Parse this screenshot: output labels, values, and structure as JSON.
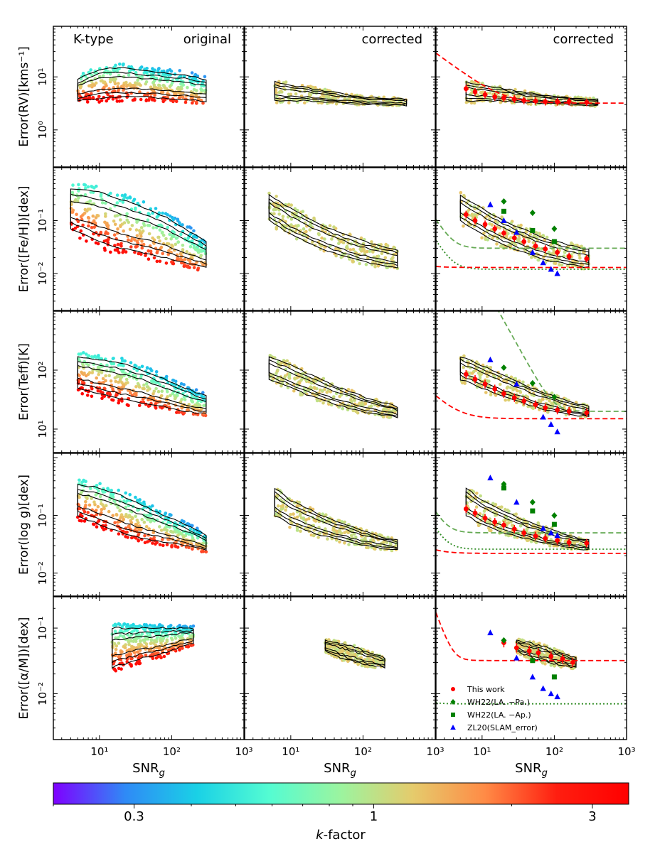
{
  "figure": {
    "row_ylabels": [
      "Error(RV)[kms⁻¹]",
      "Error([Fe/H])[dex]",
      "Error(Teff)[K]",
      "Error(log g)[dex]",
      "Error([α/M])[dex]"
    ],
    "col_titles": [
      "original",
      "corrected",
      "corrected"
    ],
    "type_label": "K-type",
    "xlabel": "SNR",
    "xlabel_sub": "g",
    "colorbar": {
      "label": "k-factor",
      "label_italic": "k",
      "label_rest": "-factor",
      "range": [
        0.2,
        3.6
      ],
      "ticks": [
        0.3,
        1,
        3
      ],
      "tick_labels": [
        "0.3",
        "1",
        "3"
      ],
      "colors": [
        "#7f00ff",
        "#2f8af6",
        "#1ad1e6",
        "#54fcd2",
        "#9cf49f",
        "#e5cb6c",
        "#ff8b46",
        "#ff1e10",
        "#ff0000"
      ]
    },
    "legend": {
      "entries": [
        {
          "label": "This work",
          "marker": "circle",
          "color": "#ff0000"
        },
        {
          "label": "WH22(LA. −Pa.)",
          "marker": "diamond",
          "color": "#008000"
        },
        {
          "label": "WH22(LA. −Ap.)",
          "marker": "square",
          "color": "#008000"
        },
        {
          "label": "ZL20(SLAM_error)",
          "marker": "triangle",
          "color": "#0000ff"
        }
      ]
    }
  },
  "chart_data": [
    {
      "type": "scatter",
      "row": 0,
      "param": "RV",
      "ylabel": "Error(RV)[kms⁻¹]",
      "xlim": [
        2.3,
        1000
      ],
      "ylim": [
        0.2,
        90
      ],
      "yticks": [
        1,
        10
      ],
      "ytick_labels": [
        "10⁰",
        "10¹"
      ],
      "xticks": [
        10,
        100,
        1000
      ],
      "xtick_labels": [
        "10¹",
        "10²",
        "10³"
      ],
      "band_original": [
        [
          5,
          3.5,
          9
        ],
        [
          10,
          4,
          14
        ],
        [
          20,
          4.2,
          15
        ],
        [
          40,
          4.2,
          13
        ],
        [
          80,
          4,
          12
        ],
        [
          150,
          3.8,
          11
        ],
        [
          300,
          3.5,
          9
        ]
      ],
      "band_corrected": [
        [
          6,
          3.5,
          8
        ],
        [
          10,
          3.6,
          7
        ],
        [
          20,
          3.5,
          6
        ],
        [
          50,
          3.2,
          4.8
        ],
        [
          100,
          3.1,
          4.2
        ],
        [
          200,
          3,
          4
        ],
        [
          400,
          2.9,
          3.8
        ]
      ],
      "binned_x": [
        6,
        8,
        11,
        15,
        20,
        28,
        38,
        55,
        75,
        110,
        160,
        280
      ],
      "binned_y": [
        6,
        5.2,
        4.6,
        4.2,
        4.0,
        3.8,
        3.6,
        3.5,
        3.4,
        3.4,
        3.4,
        3.3
      ],
      "fit": {
        "a": 3.2,
        "b": 20,
        "g": 1
      },
      "curves": []
    },
    {
      "type": "scatter",
      "row": 1,
      "param": "[Fe/H]",
      "ylabel": "Error([Fe/H])[dex]",
      "xlim": [
        2.3,
        1000
      ],
      "ylim": [
        0.002,
        1
      ],
      "yticks": [
        0.01,
        0.1
      ],
      "ytick_labels": [
        "10⁻²",
        "10⁻¹"
      ],
      "xticks": [
        10,
        100,
        1000
      ],
      "xtick_labels": [
        "10¹",
        "10²",
        "10³"
      ],
      "band_original": [
        [
          4,
          0.07,
          0.4
        ],
        [
          10,
          0.04,
          0.35
        ],
        [
          20,
          0.03,
          0.25
        ],
        [
          40,
          0.025,
          0.18
        ],
        [
          80,
          0.02,
          0.12
        ],
        [
          150,
          0.016,
          0.07
        ],
        [
          300,
          0.013,
          0.04
        ]
      ],
      "band_corrected": [
        [
          5,
          0.1,
          0.3
        ],
        [
          10,
          0.055,
          0.17
        ],
        [
          20,
          0.035,
          0.1
        ],
        [
          40,
          0.024,
          0.065
        ],
        [
          80,
          0.018,
          0.045
        ],
        [
          150,
          0.015,
          0.035
        ],
        [
          300,
          0.013,
          0.028
        ]
      ],
      "binned_x": [
        6,
        8,
        11,
        15,
        20,
        28,
        38,
        55,
        75,
        110,
        160,
        280
      ],
      "binned_y": [
        0.13,
        0.1,
        0.085,
        0.07,
        0.058,
        0.047,
        0.04,
        0.033,
        0.029,
        0.025,
        0.021,
        0.019
      ],
      "fit": {
        "a": 0.013,
        "b": 1.1,
        "g": 1.6
      },
      "curves": [
        {
          "name": "WH22(LA. −Pa.)",
          "a": 0.03,
          "b": 4.0,
          "g": 2.2,
          "style": "dashed",
          "color": "#66aa55"
        },
        {
          "name": "WH22(LA. −Ap.)",
          "a": 0.012,
          "b": 4.0,
          "g": 2.2,
          "style": "dotted",
          "color": "#2e8b22"
        }
      ],
      "ref_points": [
        {
          "set": "WH22(LA. −Pa.)",
          "marker": "diamond",
          "color": "#008000",
          "x": [
            20,
            50,
            100
          ],
          "y": [
            0.23,
            0.14,
            0.07
          ]
        },
        {
          "set": "WH22(LA. −Ap.)",
          "marker": "square",
          "color": "#008000",
          "x": [
            20,
            50,
            100
          ],
          "y": [
            0.15,
            0.065,
            0.04
          ]
        },
        {
          "set": "ZL20(SLAM_error)",
          "marker": "triangle",
          "color": "#0000ff",
          "x": [
            13,
            20,
            30,
            50,
            70,
            90,
            110
          ],
          "y": [
            0.2,
            0.1,
            0.06,
            0.025,
            0.016,
            0.012,
            0.01
          ]
        }
      ]
    },
    {
      "type": "scatter",
      "row": 2,
      "param": "Teff",
      "ylabel": "Error(Teff)[K]",
      "xlim": [
        2.3,
        1000
      ],
      "ylim": [
        4,
        1000
      ],
      "yticks": [
        10,
        100
      ],
      "ytick_labels": [
        "10¹",
        "10²"
      ],
      "xticks": [
        10,
        100,
        1000
      ],
      "xtick_labels": [
        "10¹",
        "10²",
        "10³"
      ],
      "band_original": [
        [
          5,
          50,
          170
        ],
        [
          10,
          40,
          150
        ],
        [
          20,
          32,
          130
        ],
        [
          40,
          28,
          100
        ],
        [
          80,
          24,
          70
        ],
        [
          150,
          20,
          50
        ],
        [
          300,
          18,
          36
        ]
      ],
      "band_corrected": [
        [
          5,
          70,
          170
        ],
        [
          10,
          50,
          120
        ],
        [
          20,
          35,
          80
        ],
        [
          40,
          27,
          55
        ],
        [
          80,
          21,
          40
        ],
        [
          150,
          18,
          30
        ],
        [
          300,
          16,
          24
        ]
      ],
      "binned_x": [
        6,
        8,
        11,
        15,
        20,
        28,
        38,
        55,
        75,
        110,
        160,
        280
      ],
      "binned_y": [
        85,
        70,
        58,
        48,
        40,
        34,
        30,
        26,
        23,
        21,
        20,
        19
      ],
      "fit": {
        "a": 15,
        "b": 4.5,
        "g": 1.2
      },
      "curves": [
        {
          "name": "WH22(LA. −Pa.)",
          "a": 20,
          "b": 100,
          "g": 2.2,
          "style": "dashed",
          "color": "#66aa55"
        }
      ],
      "ref_points": [
        {
          "set": "WH22(LA. −Pa.)",
          "marker": "diamond",
          "color": "#008000",
          "x": [
            20,
            50,
            100
          ],
          "y": [
            110,
            60,
            35
          ]
        },
        {
          "set": "ZL20(SLAM_error)",
          "marker": "triangle",
          "color": "#0000ff",
          "x": [
            13,
            30,
            70,
            90,
            110
          ],
          "y": [
            150,
            58,
            16,
            12,
            9
          ]
        }
      ]
    },
    {
      "type": "scatter",
      "row": 3,
      "param": "log g",
      "ylabel": "Error(log g)[dex]",
      "xlim": [
        2.3,
        1000
      ],
      "ylim": [
        0.004,
        1.2
      ],
      "yticks": [
        0.01,
        0.1
      ],
      "ytick_labels": [
        "10⁻²",
        "10⁻¹"
      ],
      "xticks": [
        10,
        100,
        1000
      ],
      "xtick_labels": [
        "10¹",
        "10²",
        "10³"
      ],
      "band_original": [
        [
          5,
          0.1,
          0.35
        ],
        [
          10,
          0.07,
          0.3
        ],
        [
          20,
          0.05,
          0.22
        ],
        [
          40,
          0.04,
          0.15
        ],
        [
          80,
          0.035,
          0.1
        ],
        [
          150,
          0.03,
          0.07
        ],
        [
          300,
          0.025,
          0.045
        ]
      ],
      "band_corrected": [
        [
          6,
          0.1,
          0.3
        ],
        [
          10,
          0.07,
          0.18
        ],
        [
          20,
          0.05,
          0.12
        ],
        [
          40,
          0.04,
          0.08
        ],
        [
          80,
          0.032,
          0.06
        ],
        [
          150,
          0.028,
          0.045
        ],
        [
          300,
          0.025,
          0.037
        ]
      ],
      "binned_x": [
        6,
        8,
        11,
        15,
        20,
        28,
        38,
        55,
        75,
        110,
        160,
        280
      ],
      "binned_y": [
        0.13,
        0.11,
        0.09,
        0.077,
        0.068,
        0.058,
        0.05,
        0.044,
        0.04,
        0.037,
        0.034,
        0.033
      ],
      "fit": {
        "a": 0.022,
        "b": 1.5,
        "g": 1.3
      },
      "curves": [
        {
          "name": "WH22(LA. −Pa.)",
          "a": 0.05,
          "b": 3.2,
          "g": 2.2,
          "style": "dashed",
          "color": "#66aa55"
        },
        {
          "name": "WH22(LA. −Ap.)",
          "a": 0.026,
          "b": 3.2,
          "g": 2.2,
          "style": "dotted",
          "color": "#2e8b22"
        }
      ],
      "ref_points": [
        {
          "set": "WH22(LA. −Pa.)",
          "marker": "diamond",
          "color": "#008000",
          "x": [
            20,
            50,
            100
          ],
          "y": [
            0.35,
            0.17,
            0.1
          ]
        },
        {
          "set": "WH22(LA. −Ap.)",
          "marker": "square",
          "color": "#008000",
          "x": [
            20,
            50,
            100
          ],
          "y": [
            0.3,
            0.12,
            0.07
          ]
        },
        {
          "set": "ZL20(SLAM_error)",
          "marker": "triangle",
          "color": "#0000ff",
          "x": [
            13,
            30,
            70,
            90,
            110
          ],
          "y": [
            0.45,
            0.17,
            0.06,
            0.05,
            0.045
          ]
        }
      ]
    },
    {
      "type": "scatter",
      "row": 4,
      "param": "[α/M]",
      "ylabel": "Error([α/M])[dex]",
      "xlim": [
        2.3,
        1000
      ],
      "ylim": [
        0.002,
        0.3
      ],
      "yticks": [
        0.01,
        0.1
      ],
      "ytick_labels": [
        "10⁻²",
        "10⁻¹"
      ],
      "xticks": [
        10,
        100,
        1000
      ],
      "xtick_labels": [
        "10¹",
        "10²",
        "10³"
      ],
      "band_original": [
        [
          15,
          0.025,
          0.1
        ],
        [
          25,
          0.03,
          0.1
        ],
        [
          40,
          0.035,
          0.1
        ],
        [
          70,
          0.04,
          0.1
        ],
        [
          120,
          0.05,
          0.1
        ],
        [
          200,
          0.06,
          0.1
        ]
      ],
      "band_corrected": [
        [
          30,
          0.045,
          0.065
        ],
        [
          50,
          0.035,
          0.058
        ],
        [
          80,
          0.03,
          0.05
        ],
        [
          120,
          0.027,
          0.042
        ],
        [
          200,
          0.025,
          0.035
        ]
      ],
      "binned_x": [
        20,
        30,
        45,
        60,
        90,
        130,
        180
      ],
      "binned_y": [
        0.06,
        0.05,
        0.045,
        0.042,
        0.037,
        0.034,
        0.03
      ],
      "fit": {
        "a": 0.032,
        "b": 4,
        "g": 3
      },
      "curves": [
        {
          "name": "WH22(LA. −Ap.)",
          "a": 0.007,
          "b": 1.3,
          "g": 2.2,
          "style": "dotted",
          "color": "#2e8b22"
        }
      ],
      "ref_points": [
        {
          "set": "WH22(LA. −Pa.)",
          "marker": "diamond",
          "color": "#008000",
          "x": [
            20
          ],
          "y": [
            0.065
          ]
        },
        {
          "set": "WH22(LA. −Ap.)",
          "marker": "square",
          "color": "#008000",
          "x": [
            50,
            100
          ],
          "y": [
            0.032,
            0.018
          ]
        },
        {
          "set": "ZL20(SLAM_error)",
          "marker": "triangle",
          "color": "#0000ff",
          "x": [
            13,
            30,
            50,
            70,
            90,
            110
          ],
          "y": [
            0.085,
            0.035,
            0.018,
            0.012,
            0.01,
            0.009
          ]
        }
      ]
    }
  ]
}
